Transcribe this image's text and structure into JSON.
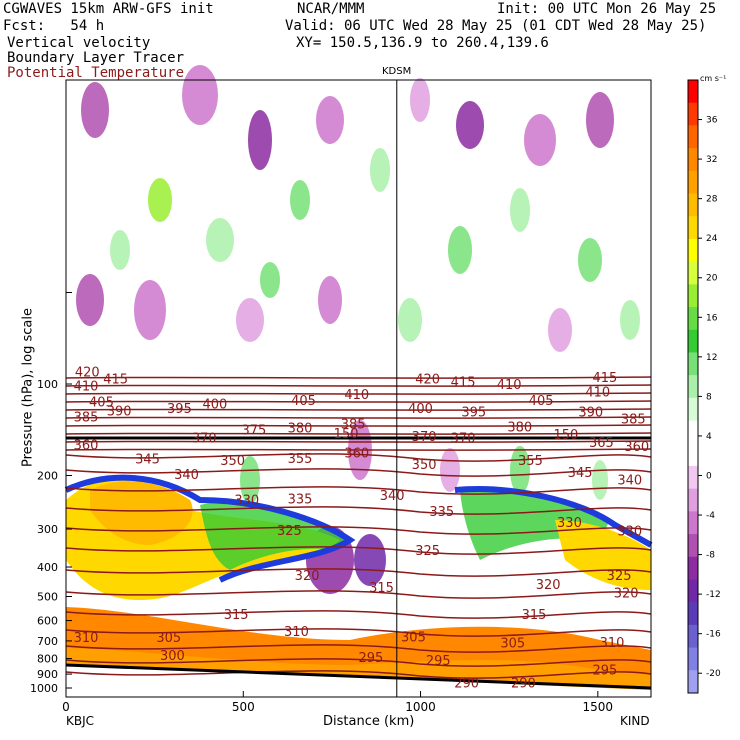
{
  "header": {
    "model": "CGWAVES 15km ARW-GFS init",
    "center": "NCAR/MMM",
    "init": "Init: 00 UTC Mon 26 May 25",
    "forecast": "Fcst:   54 h",
    "valid": "Valid: 06 UTC Wed 28 May 25 (01 CDT Wed 28 May 25)",
    "field1": "Vertical velocity",
    "xy": "XY= 150.5,136.9 to 260.4,139.6",
    "field2": "Boundary Layer Tracer",
    "field3": "Potential Temperature",
    "station_mark": "KDSM"
  },
  "chart_data": {
    "type": "heatmap",
    "title": "",
    "xlabel": "Distance (km)",
    "ylabel": "Pressure (hPa), log scale",
    "x_ticks": [
      0,
      500,
      1000,
      1500
    ],
    "x_tick_labels": [
      "0",
      "500",
      "1000",
      "1500"
    ],
    "xlim": [
      0,
      1650
    ],
    "y_ticks": [
      100,
      200,
      300,
      400,
      500,
      600,
      700,
      800,
      900,
      1000
    ],
    "y_tick_labels": [
      "100",
      "200",
      "300",
      "400",
      "500",
      "600",
      "700",
      "800",
      "900",
      "1000"
    ],
    "y_scale": "log",
    "endpoints": {
      "left": "KBJC",
      "right": "KIND"
    },
    "station_marker_x": 933,
    "colorbar": {
      "units": "cm s⁻¹",
      "tick_values": [
        36,
        32,
        28,
        24,
        20,
        16,
        12,
        8,
        4,
        0,
        -4,
        -8,
        -12,
        -16,
        -20
      ],
      "tick_labels": [
        "36",
        "32",
        "28",
        "24",
        "20",
        "16",
        "12",
        "8",
        "4",
        "0",
        "-4",
        "-8",
        "-12",
        "-16",
        "-20"
      ],
      "colors": [
        "#ff0000",
        "#ff3a00",
        "#ff6600",
        "#ff8800",
        "#ffa000",
        "#ffbb00",
        "#ffd800",
        "#ffff00",
        "#d8ff3c",
        "#99ee33",
        "#66dd44",
        "#33cc33",
        "#77e077",
        "#aaf0aa",
        "#d6fbd6",
        "#ffffff",
        "#ffffff",
        "#f0c8f0",
        "#e0a0e0",
        "#cc77cc",
        "#b050b0",
        "#8c2ca0",
        "#7028a8",
        "#5a3cb8",
        "#6a60d0",
        "#8080e6",
        "#a0a0f0"
      ]
    },
    "theta_contour_labels": [
      {
        "x": 60,
        "p": 91,
        "label": "420"
      },
      {
        "x": 140,
        "p": 96,
        "label": "415"
      },
      {
        "x": 0,
        "p": 101,
        "label": "410"
      },
      {
        "x": 1020,
        "p": 96,
        "label": "420"
      },
      {
        "x": 1120,
        "p": 98,
        "label": "415"
      },
      {
        "x": 1250,
        "p": 100,
        "label": "410"
      },
      {
        "x": 1520,
        "p": 95,
        "label": "415"
      },
      {
        "x": 100,
        "p": 114,
        "label": "405"
      },
      {
        "x": 420,
        "p": 116,
        "label": "400"
      },
      {
        "x": 670,
        "p": 113,
        "label": "405"
      },
      {
        "x": 820,
        "p": 108,
        "label": "410"
      },
      {
        "x": 1340,
        "p": 113,
        "label": "405"
      },
      {
        "x": 1500,
        "p": 106,
        "label": "410"
      },
      {
        "x": 0,
        "p": 128,
        "label": "385"
      },
      {
        "x": 150,
        "p": 122,
        "label": "390"
      },
      {
        "x": 320,
        "p": 120,
        "label": "395"
      },
      {
        "x": 1000,
        "p": 120,
        "label": "400"
      },
      {
        "x": 1150,
        "p": 123,
        "label": "395"
      },
      {
        "x": 1480,
        "p": 123,
        "label": "390"
      },
      {
        "x": 1600,
        "p": 130,
        "label": "385"
      },
      {
        "x": 810,
        "p": 135,
        "label": "385"
      },
      {
        "x": 530,
        "p": 141,
        "label": "375"
      },
      {
        "x": 660,
        "p": 139,
        "label": "380"
      },
      {
        "x": 1280,
        "p": 138,
        "label": "380"
      },
      {
        "x": 0,
        "p": 158,
        "label": "360"
      },
      {
        "x": 390,
        "p": 150,
        "label": "370"
      },
      {
        "x": 1010,
        "p": 148,
        "label": "370"
      },
      {
        "x": 1120,
        "p": 150,
        "label": "370"
      },
      {
        "x": 1510,
        "p": 155,
        "label": "365"
      },
      {
        "x": 1610,
        "p": 160,
        "label": "360"
      },
      {
        "x": 230,
        "p": 176,
        "label": "345"
      },
      {
        "x": 470,
        "p": 178,
        "label": "350"
      },
      {
        "x": 660,
        "p": 175,
        "label": "355"
      },
      {
        "x": 820,
        "p": 168,
        "label": "360"
      },
      {
        "x": 1010,
        "p": 183,
        "label": "350"
      },
      {
        "x": 1310,
        "p": 178,
        "label": "355"
      },
      {
        "x": 1450,
        "p": 195,
        "label": "345"
      },
      {
        "x": 340,
        "p": 198,
        "label": "340"
      },
      {
        "x": 1590,
        "p": 206,
        "label": "340"
      },
      {
        "x": 660,
        "p": 238,
        "label": "335"
      },
      {
        "x": 920,
        "p": 232,
        "label": "340"
      },
      {
        "x": 1060,
        "p": 262,
        "label": "335"
      },
      {
        "x": 510,
        "p": 240,
        "label": "330"
      },
      {
        "x": 1420,
        "p": 284,
        "label": "330"
      },
      {
        "x": 1590,
        "p": 303,
        "label": "330"
      },
      {
        "x": 630,
        "p": 302,
        "label": "325"
      },
      {
        "x": 1020,
        "p": 352,
        "label": "325"
      },
      {
        "x": 1560,
        "p": 425,
        "label": "325"
      },
      {
        "x": 680,
        "p": 425,
        "label": "320"
      },
      {
        "x": 1360,
        "p": 455,
        "label": "320"
      },
      {
        "x": 1580,
        "p": 485,
        "label": "320"
      },
      {
        "x": 890,
        "p": 465,
        "label": "315"
      },
      {
        "x": 480,
        "p": 570,
        "label": "315"
      },
      {
        "x": 1320,
        "p": 570,
        "label": "315"
      },
      {
        "x": 650,
        "p": 650,
        "label": "310"
      },
      {
        "x": 290,
        "p": 680,
        "label": "305"
      },
      {
        "x": 980,
        "p": 676,
        "label": "305"
      },
      {
        "x": 1260,
        "p": 708,
        "label": "305"
      },
      {
        "x": 1540,
        "p": 705,
        "label": "310"
      },
      {
        "x": 300,
        "p": 780,
        "label": "300"
      },
      {
        "x": 860,
        "p": 790,
        "label": "295"
      },
      {
        "x": 1050,
        "p": 808,
        "label": "295"
      },
      {
        "x": 1520,
        "p": 870,
        "label": "295"
      },
      {
        "x": 1130,
        "p": 960,
        "label": "290"
      },
      {
        "x": 1290,
        "p": 960,
        "label": "290"
      },
      {
        "x": 0,
        "p": 680,
        "label": "310"
      },
      {
        "x": 790,
        "p": 145,
        "label": "150"
      },
      {
        "x": 1410,
        "p": 146,
        "label": "150"
      }
    ]
  }
}
